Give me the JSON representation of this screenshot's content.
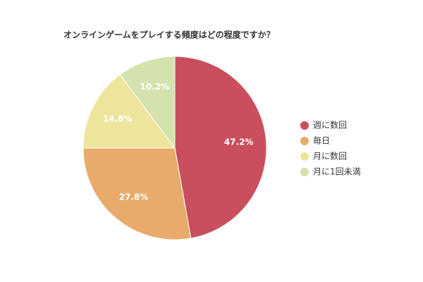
{
  "chart_data": {
    "type": "pie",
    "title": "オンラインゲームをプレイする頻度はどの程度ですか？",
    "categories": [
      "週に数回",
      "毎日",
      "月に数回",
      "月に1回未満"
    ],
    "values": [
      47.2,
      27.8,
      14.8,
      10.2
    ],
    "value_labels": [
      "47.2%",
      "27.8%",
      "14.8%",
      "10.2%"
    ],
    "colors": [
      "#c94f5e",
      "#e8ab6b",
      "#ede59c",
      "#d4e2ae"
    ],
    "legend": "right"
  }
}
